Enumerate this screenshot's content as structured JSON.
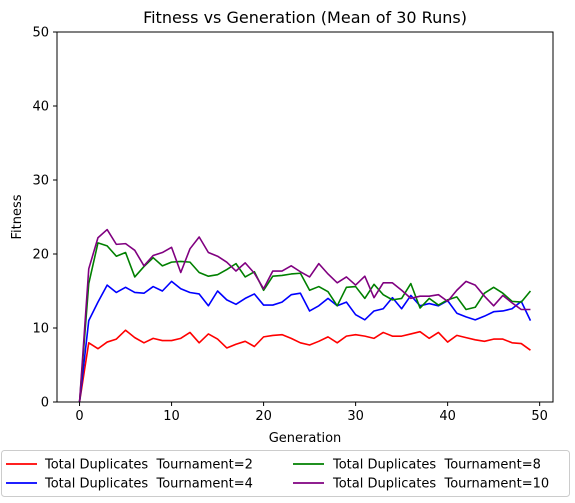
{
  "chart_data": {
    "type": "line",
    "title": "Fitness vs Generation (Mean of 30 Runs)",
    "xlabel": "Generation",
    "ylabel": "Fitness",
    "xlim": [
      -2.45,
      51.45
    ],
    "ylim": [
      0,
      50
    ],
    "xticks": [
      0,
      10,
      20,
      30,
      40,
      50
    ],
    "yticks": [
      0,
      10,
      20,
      30,
      40,
      50
    ],
    "grid": false,
    "legend_position": "bottom",
    "series": [
      {
        "name": "Total Duplicates  Tournament=2",
        "color": "#ff0000",
        "values": [
          0,
          8,
          7.2,
          8.1,
          8.5,
          9.7,
          8.7,
          8.0,
          8.6,
          8.3,
          8.3,
          8.6,
          9.4,
          8.0,
          9.2,
          8.5,
          7.3,
          7.8,
          8.2,
          7.5,
          8.8,
          9.0,
          9.1,
          8.6,
          8.0,
          7.7,
          8.2,
          8.8,
          8.0,
          8.9,
          9.1,
          8.9,
          8.6,
          9.4,
          8.9,
          8.9,
          9.2,
          9.5,
          8.6,
          9.4,
          8.1,
          9.0,
          8.7,
          8.4,
          8.2,
          8.5,
          8.5,
          8.0,
          7.9,
          7.0
        ]
      },
      {
        "name": "Total Duplicates  Tournament=4",
        "color": "#0000ff",
        "values": [
          0,
          11,
          13.5,
          15.8,
          14.8,
          15.5,
          14.8,
          14.7,
          15.6,
          15.0,
          16.3,
          15.3,
          14.8,
          14.6,
          13.0,
          15.0,
          13.8,
          13.2,
          14.0,
          14.6,
          13.1,
          13.1,
          13.5,
          14.5,
          14.7,
          12.3,
          13.0,
          14.0,
          13.0,
          13.5,
          11.8,
          11.1,
          12.3,
          12.6,
          14.1,
          12.6,
          14.4,
          13.0,
          13.3,
          13.0,
          13.7,
          12.0,
          11.5,
          11.1,
          11.6,
          12.2,
          12.3,
          12.6,
          13.6,
          11.0
        ]
      },
      {
        "name": "Total Duplicates  Tournament=8",
        "color": "#008000",
        "values": [
          0,
          16,
          21.5,
          21.1,
          19.7,
          20.2,
          16.9,
          18.3,
          19.5,
          18.4,
          18.9,
          19.0,
          18.9,
          17.5,
          17.0,
          17.2,
          17.9,
          18.7,
          16.9,
          17.6,
          15.1,
          17.0,
          17.1,
          17.3,
          17.4,
          15.1,
          15.6,
          14.9,
          13.0,
          15.5,
          15.6,
          14.0,
          15.9,
          14.5,
          13.8,
          14.0,
          16.0,
          12.7,
          14.0,
          13.1,
          13.8,
          14.2,
          12.5,
          12.8,
          14.7,
          15.5,
          14.7,
          13.6,
          13.5,
          15.0
        ]
      },
      {
        "name": "Total Duplicates  Tournament=10",
        "color": "#800080",
        "values": [
          0,
          18,
          22.2,
          23.3,
          21.3,
          21.4,
          20.5,
          18.4,
          19.8,
          20.2,
          20.9,
          17.5,
          20.7,
          22.3,
          20.2,
          19.7,
          18.9,
          17.7,
          18.8,
          17.4,
          15.3,
          17.7,
          17.7,
          18.4,
          17.6,
          16.9,
          18.7,
          17.3,
          16.1,
          16.9,
          15.8,
          17.0,
          14.1,
          16.1,
          16.1,
          15.1,
          14.0,
          14.3,
          14.3,
          14.5,
          13.6,
          15.1,
          16.3,
          15.8,
          14.3,
          13.0,
          14.4,
          13.4,
          12.5,
          12.5
        ]
      }
    ]
  }
}
